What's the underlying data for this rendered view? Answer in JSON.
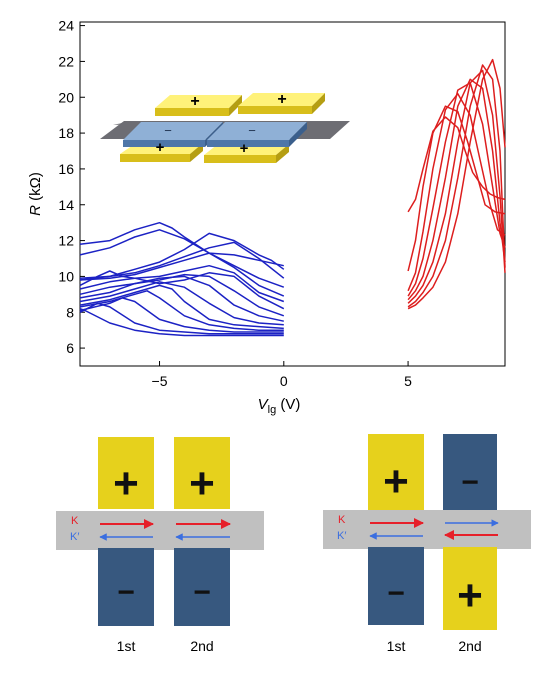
{
  "chart_data": {
    "type": "line",
    "title": "",
    "xlabel_italic": "V",
    "xlabel_sub": "lg",
    "xlabel_unit": " (V)",
    "ylabel_italic": "R",
    "ylabel_unit": " (kΩ)",
    "xlim": [
      -8.2,
      8.9
    ],
    "ylim": [
      5.0,
      24.2
    ],
    "xticks": [
      -5,
      0,
      5
    ],
    "xtick_labels": [
      "−5",
      "0",
      "5"
    ],
    "yticks": [
      6,
      8,
      10,
      12,
      14,
      16,
      18,
      20,
      22,
      24
    ],
    "ytick_labels": [
      "6",
      "8",
      "10",
      "12",
      "14",
      "16",
      "18",
      "20",
      "22",
      "24"
    ],
    "grid": false,
    "colors": {
      "blue": "#1c22c4",
      "red": "#dd1e1e"
    },
    "blue_series": [
      {
        "x": [
          -8.2,
          -7.0,
          -6.0,
          -5.0,
          -4.0,
          -3.0,
          -2.0,
          -1.0,
          0.0
        ],
        "y": [
          11.2,
          11.6,
          12.2,
          12.6,
          12.1,
          11.3,
          11.2,
          10.9,
          10.6
        ]
      },
      {
        "x": [
          -8.2,
          -7.0,
          -6.0,
          -5.0,
          -4.5,
          -4.0,
          -3.0,
          -2.0,
          -1.0,
          0.0
        ],
        "y": [
          11.8,
          12.0,
          12.6,
          13.0,
          12.7,
          12.2,
          11.3,
          10.6,
          9.9,
          9.4
        ]
      },
      {
        "x": [
          -8.2,
          -7.0,
          -6.0,
          -5.0,
          -4.0,
          -3.0,
          -2.0,
          -1.0,
          -0.5,
          0.0
        ],
        "y": [
          9.8,
          10.0,
          10.4,
          10.8,
          11.5,
          12.4,
          12.0,
          11.2,
          10.9,
          10.4
        ]
      },
      {
        "x": [
          -8.2,
          -7.0,
          -6.0,
          -5.0,
          -4.0,
          -3.0,
          -2.0,
          -1.0,
          0.0
        ],
        "y": [
          9.9,
          10.0,
          10.2,
          10.6,
          11.1,
          11.6,
          11.9,
          11.0,
          9.9
        ]
      },
      {
        "x": [
          -8.2,
          -7.0,
          -6.0,
          -5.0,
          -4.0,
          -3.0,
          -2.0,
          -1.0,
          0.0
        ],
        "y": [
          9.8,
          9.9,
          10.1,
          10.5,
          10.9,
          11.3,
          10.5,
          9.5,
          8.9
        ]
      },
      {
        "x": [
          -8.2,
          -7.5,
          -7.0,
          -6.5,
          -6.0,
          -5.0,
          -4.0,
          -3.0,
          -2.0,
          -1.0,
          0.0
        ],
        "y": [
          9.5,
          10.0,
          10.3,
          10.0,
          9.9,
          10.0,
          10.3,
          10.6,
          10.2,
          9.1,
          8.6
        ]
      },
      {
        "x": [
          -8.2,
          -7.0,
          -6.0,
          -5.0,
          -4.0,
          -3.0,
          -2.0,
          -1.0,
          0.0
        ],
        "y": [
          9.3,
          9.7,
          9.9,
          9.6,
          9.8,
          10.2,
          10.0,
          8.9,
          8.2
        ]
      },
      {
        "x": [
          -8.2,
          -7.0,
          -6.0,
          -5.0,
          -4.0,
          -3.0,
          -2.0,
          -1.0,
          0.0
        ],
        "y": [
          9.0,
          9.4,
          9.6,
          9.8,
          10.1,
          10.0,
          9.2,
          8.3,
          7.8
        ]
      },
      {
        "x": [
          -8.2,
          -7.0,
          -6.0,
          -5.0,
          -4.0,
          -3.0,
          -2.0,
          -1.0,
          0.0
        ],
        "y": [
          8.8,
          9.1,
          9.6,
          9.9,
          10.0,
          9.5,
          8.4,
          7.8,
          7.5
        ]
      },
      {
        "x": [
          -8.2,
          -7.0,
          -6.0,
          -5.0,
          -4.0,
          -3.0,
          -2.0,
          -1.0,
          0.0
        ],
        "y": [
          8.6,
          8.9,
          9.3,
          9.7,
          9.4,
          8.5,
          7.7,
          7.4,
          7.3
        ]
      },
      {
        "x": [
          -8.2,
          -7.0,
          -6.0,
          -5.0,
          -4.5,
          -4.0,
          -3.0,
          -2.0,
          -1.0,
          0.0
        ],
        "y": [
          8.4,
          8.7,
          9.1,
          9.5,
          9.3,
          8.6,
          7.6,
          7.3,
          7.2,
          7.1
        ]
      },
      {
        "x": [
          -8.2,
          -7.0,
          -6.0,
          -5.5,
          -5.0,
          -4.0,
          -3.0,
          -2.0,
          -1.0,
          0.0
        ],
        "y": [
          8.3,
          8.6,
          9.0,
          9.2,
          8.8,
          7.8,
          7.3,
          7.1,
          7.0,
          7.0
        ]
      },
      {
        "x": [
          -8.2,
          -7.0,
          -6.5,
          -6.0,
          -5.0,
          -4.0,
          -3.0,
          -2.0,
          -1.0,
          0.0
        ],
        "y": [
          8.1,
          8.5,
          8.8,
          8.6,
          7.6,
          7.2,
          7.0,
          6.9,
          6.9,
          6.9
        ]
      },
      {
        "x": [
          -8.2,
          -7.5,
          -7.0,
          -6.0,
          -5.0,
          -4.0,
          -3.0,
          -2.0,
          -1.0,
          0.0
        ],
        "y": [
          8.0,
          8.5,
          8.3,
          7.4,
          7.0,
          6.9,
          6.8,
          6.8,
          6.8,
          6.8
        ]
      },
      {
        "x": [
          -8.2,
          -8.0,
          -7.0,
          -6.0,
          -5.0,
          -4.0,
          -3.0,
          -2.0,
          -1.0,
          0.0
        ],
        "y": [
          8.2,
          8.1,
          7.4,
          7.0,
          6.8,
          6.7,
          6.7,
          6.7,
          6.7,
          6.7
        ]
      }
    ],
    "red_series": [
      {
        "x": [
          5.0,
          5.3,
          5.6,
          6.0,
          6.5,
          7.0,
          7.3,
          7.6,
          8.0,
          8.3,
          8.6,
          8.9
        ],
        "y": [
          13.6,
          14.3,
          16.0,
          18.1,
          18.9,
          18.3,
          17.0,
          15.8,
          15.0,
          14.6,
          14.4,
          14.3
        ]
      },
      {
        "x": [
          5.0,
          5.3,
          5.6,
          6.0,
          6.5,
          7.0,
          7.4,
          7.8,
          8.1,
          8.5,
          8.9
        ],
        "y": [
          10.3,
          12.0,
          15.0,
          18.0,
          19.5,
          19.2,
          17.5,
          15.5,
          14.0,
          13.6,
          13.5
        ]
      },
      {
        "x": [
          5.0,
          5.3,
          5.6,
          6.0,
          6.5,
          7.0,
          7.5,
          7.9,
          8.3,
          8.6,
          8.9
        ],
        "y": [
          9.2,
          10.2,
          12.5,
          16.0,
          19.3,
          20.2,
          19.0,
          16.5,
          14.0,
          12.6,
          12.3
        ]
      },
      {
        "x": [
          5.0,
          5.3,
          5.6,
          6.0,
          6.5,
          7.0,
          7.5,
          8.0,
          8.4,
          8.7,
          8.9
        ],
        "y": [
          8.9,
          9.6,
          11.0,
          13.8,
          17.5,
          20.4,
          20.8,
          18.5,
          15.0,
          12.4,
          11.6
        ]
      },
      {
        "x": [
          5.0,
          5.3,
          5.6,
          6.0,
          6.5,
          7.0,
          7.5,
          8.0,
          8.4,
          8.7,
          8.9
        ],
        "y": [
          8.7,
          9.2,
          10.0,
          12.0,
          15.5,
          19.5,
          21.0,
          20.5,
          17.0,
          13.0,
          10.8
        ]
      },
      {
        "x": [
          5.0,
          5.3,
          5.6,
          6.0,
          6.5,
          7.0,
          7.5,
          8.0,
          8.4,
          8.7,
          8.9
        ],
        "y": [
          8.5,
          8.9,
          9.5,
          10.8,
          13.5,
          17.5,
          20.8,
          21.5,
          19.0,
          14.5,
          10.2
        ]
      },
      {
        "x": [
          5.0,
          5.3,
          5.6,
          6.0,
          6.5,
          7.0,
          7.5,
          8.0,
          8.4,
          8.7,
          8.9
        ],
        "y": [
          8.3,
          8.6,
          9.1,
          10.0,
          12.0,
          15.5,
          19.5,
          21.8,
          21.0,
          17.0,
          10.5
        ]
      },
      {
        "x": [
          5.0,
          5.3,
          5.6,
          6.0,
          6.5,
          7.0,
          7.5,
          8.0,
          8.4,
          8.7,
          8.9
        ],
        "y": [
          8.2,
          8.4,
          8.8,
          9.4,
          10.8,
          13.5,
          17.5,
          21.0,
          22.1,
          20.5,
          17.2
        ]
      }
    ]
  },
  "inset": {
    "plus_symbol": "+",
    "minus_symbol": "−"
  },
  "diagrams": [
    {
      "top_gate_symbols": [
        "+",
        "+"
      ],
      "bottom_gate_symbols": [
        "−",
        "−"
      ],
      "top_gate_colors": [
        "#e6d11c",
        "#e6d11c"
      ],
      "bottom_gate_colors": [
        "#37587f",
        "#37587f"
      ],
      "valley_labels": [
        "K",
        "K′"
      ],
      "valley_label_colors": [
        "#e6202a",
        "#3a6ee0"
      ],
      "gate_labels": [
        "1st",
        "2nd"
      ],
      "k_arrows_right": [
        true,
        true
      ],
      "kprime_arrows_left": [
        true,
        true
      ]
    },
    {
      "top_gate_symbols": [
        "+",
        "−"
      ],
      "bottom_gate_symbols": [
        "−",
        "+"
      ],
      "top_gate_colors": [
        "#e6d11c",
        "#37587f"
      ],
      "bottom_gate_colors": [
        "#37587f",
        "#e6d11c"
      ],
      "valley_labels": [
        "K",
        "K′"
      ],
      "valley_label_colors": [
        "#e6202a",
        "#3a6ee0"
      ],
      "gate_labels": [
        "1st",
        "2nd"
      ],
      "k_arrows_right": [
        true,
        false
      ],
      "kprime_arrows_left": [
        true,
        false
      ]
    }
  ]
}
